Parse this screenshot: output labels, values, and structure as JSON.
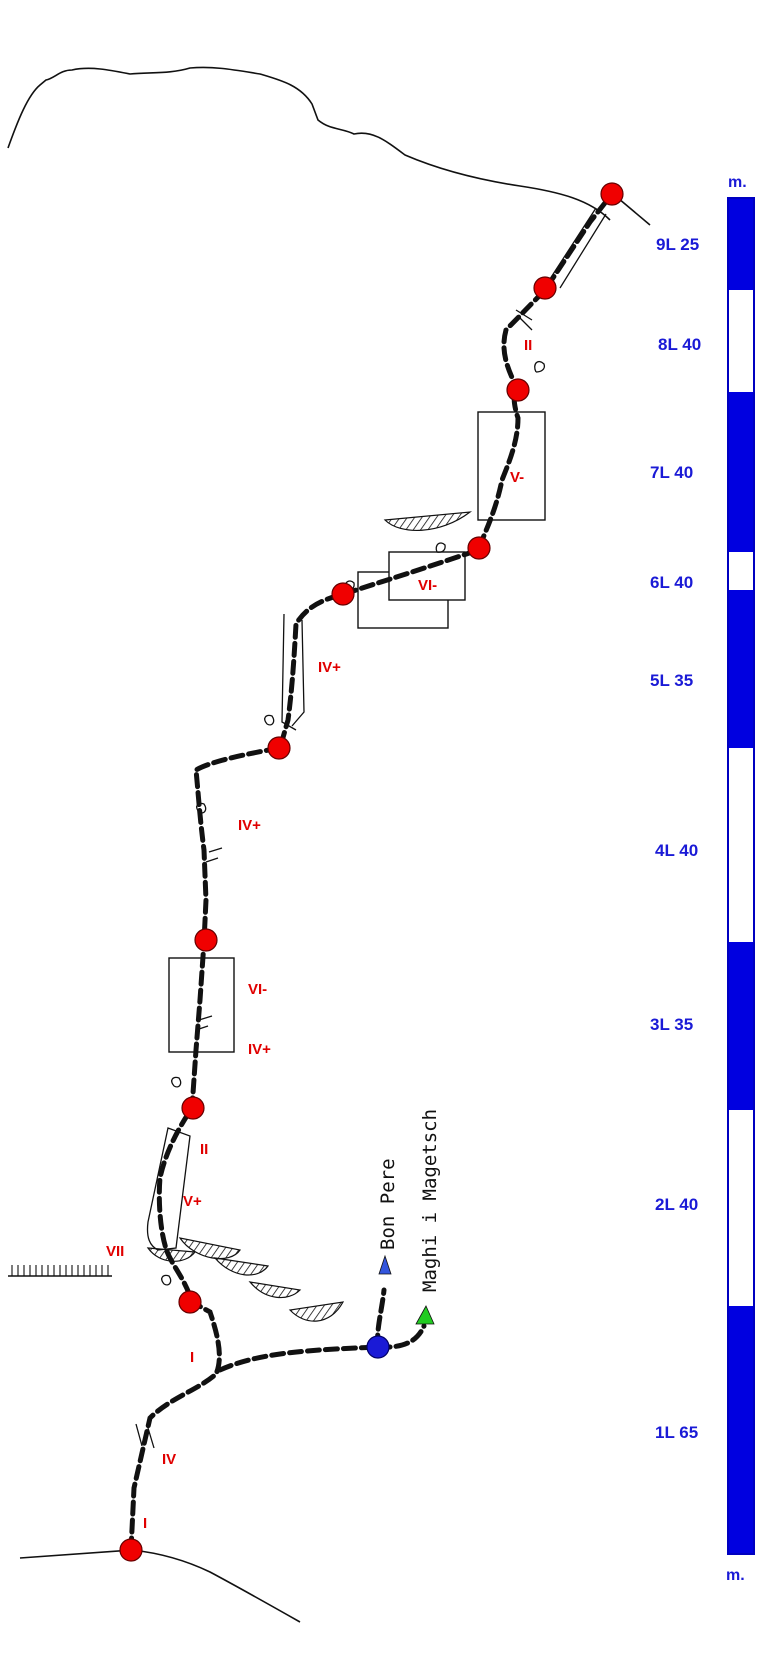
{
  "grades": [
    "II",
    "V-",
    "VI-",
    "IV+",
    "IV+",
    "VI-",
    "IV+",
    "II",
    "V+",
    "VII",
    "I",
    "IV",
    "I"
  ],
  "pitches": [
    "9L 25",
    "8L 40",
    "7L 40",
    "6L 40",
    "5L 35",
    "4L 40",
    "3L 35",
    "2L 40",
    "1L 65"
  ],
  "scale": {
    "unit_top": "m.",
    "unit_bottom": "m."
  },
  "routes": {
    "left": "Bon Pere",
    "right": "Maghi i Magetsch"
  },
  "colors": {
    "belay": "#f00000",
    "start": "#1a1ad6",
    "grade_text": "#e00000",
    "scale_blue": "#0000e0",
    "marker_blue": "#3355dd",
    "marker_green": "#22cc22"
  }
}
